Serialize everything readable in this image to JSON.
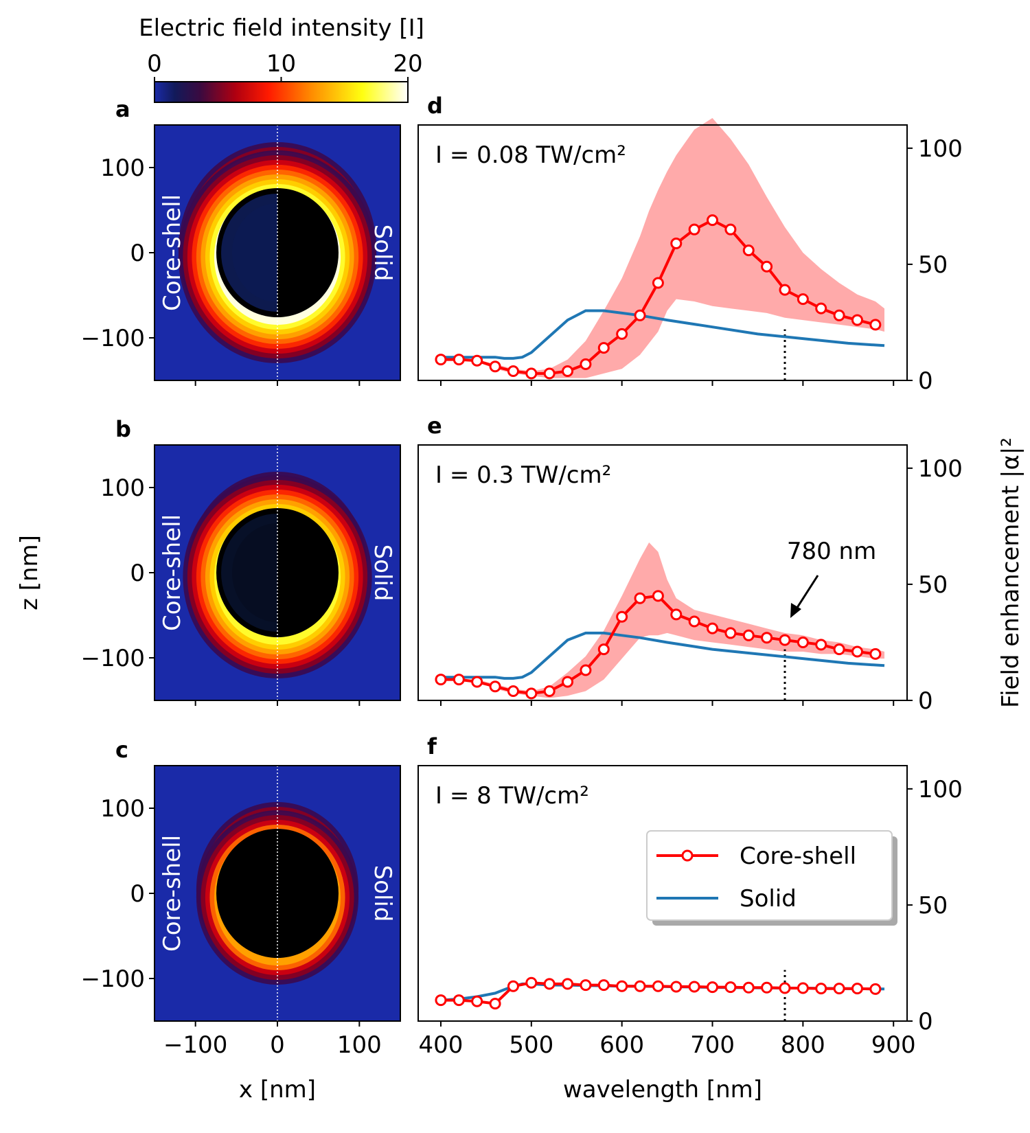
{
  "colors": {
    "core_shell": "#ff0000",
    "solid": "#1f77b4",
    "band": "#ffaaaa",
    "field_bg": "#1a2aa8"
  },
  "colorbar": {
    "title": "Electric field intensity [I]",
    "ticks": [
      "0",
      "10",
      "20"
    ],
    "range": [
      0,
      20
    ]
  },
  "field_maps": {
    "xlabel": "x [nm]",
    "ylabel": "z [nm]",
    "xticks": [
      "−100",
      "0",
      "100"
    ],
    "yticks": [
      "100",
      "0",
      "−100"
    ],
    "xlim": [
      -150,
      150
    ],
    "ylim": [
      -150,
      150
    ],
    "left_label": "Core-shell",
    "right_label": "Solid",
    "panels": [
      {
        "letter": "a",
        "rim_top": 20,
        "rim_bottom": 20
      },
      {
        "letter": "b",
        "rim_top": 16,
        "rim_bottom": 17
      },
      {
        "letter": "c",
        "rim_top": 12,
        "rim_bottom": 12
      }
    ]
  },
  "chart_data": [
    {
      "type": "line",
      "panel": "d",
      "annotation": "I = 0.08 TW/cm²",
      "x": [
        400,
        420,
        440,
        460,
        480,
        500,
        520,
        540,
        560,
        580,
        600,
        620,
        640,
        660,
        680,
        700,
        720,
        740,
        760,
        780,
        800,
        820,
        840,
        860,
        880
      ],
      "series": [
        {
          "name": "Core-shell",
          "values": [
            9,
            9,
            8.5,
            6,
            4,
            3,
            3,
            4,
            7,
            14,
            20,
            28,
            42,
            59,
            65,
            69,
            65,
            56,
            49,
            39,
            35,
            31,
            28,
            26,
            24
          ]
        },
        {
          "name": "Solid",
          "x": [
            400,
            420,
            440,
            460,
            470,
            480,
            490,
            500,
            520,
            540,
            560,
            580,
            600,
            620,
            650,
            700,
            750,
            800,
            850,
            890
          ],
          "values": [
            10,
            10,
            10,
            10,
            9.5,
            9.5,
            10,
            12,
            19,
            26,
            30,
            30,
            29,
            28,
            26,
            23,
            20,
            18,
            16,
            15
          ]
        },
        {
          "name": "band",
          "x": [
            400,
            420,
            440,
            460,
            480,
            500,
            520,
            540,
            560,
            580,
            600,
            620,
            630,
            640,
            650,
            660,
            680,
            700,
            720,
            740,
            760,
            780,
            800,
            820,
            840,
            860,
            880,
            890
          ],
          "upper": [
            9,
            9,
            9,
            7,
            5,
            4,
            5,
            9,
            17,
            30,
            44,
            62,
            73,
            82,
            90,
            97,
            108,
            113,
            104,
            93,
            79,
            66,
            55,
            48,
            42,
            37,
            34,
            31
          ],
          "lower": [
            9,
            9,
            8,
            5,
            3,
            2,
            1,
            1,
            1,
            3,
            5,
            11,
            16,
            21,
            30,
            35,
            34,
            32,
            31,
            30,
            29,
            27,
            26,
            25,
            24,
            23,
            22,
            21
          ]
        }
      ],
      "vline_x": 780,
      "xlim": [
        375,
        915
      ],
      "ylim": [
        0,
        110
      ],
      "xticks": [
        400,
        500,
        600,
        700,
        800,
        900
      ],
      "yticks": [
        0,
        50,
        100
      ]
    },
    {
      "type": "line",
      "panel": "e",
      "annotation": "I = 0.3 TW/cm²",
      "arrow_label": "780 nm",
      "x": [
        400,
        420,
        440,
        460,
        480,
        500,
        520,
        540,
        560,
        580,
        600,
        620,
        640,
        660,
        680,
        700,
        720,
        740,
        760,
        780,
        800,
        820,
        840,
        860,
        880
      ],
      "series": [
        {
          "name": "Core-shell",
          "values": [
            9,
            9,
            8,
            6,
            4,
            3,
            4,
            8,
            13,
            22,
            36,
            44,
            45,
            37,
            34,
            31,
            29,
            28,
            27,
            26,
            25,
            24,
            22,
            21,
            20
          ]
        },
        {
          "name": "Solid",
          "x": [
            400,
            420,
            440,
            460,
            470,
            480,
            490,
            500,
            520,
            540,
            560,
            580,
            600,
            620,
            650,
            700,
            750,
            800,
            850,
            890
          ],
          "values": [
            10,
            10,
            10,
            10,
            9.5,
            9.5,
            10,
            12,
            19,
            26,
            29,
            29,
            28,
            27,
            25,
            22,
            20,
            18,
            16,
            15
          ]
        },
        {
          "name": "band",
          "x": [
            400,
            420,
            440,
            460,
            480,
            500,
            520,
            540,
            560,
            580,
            600,
            620,
            630,
            640,
            650,
            660,
            680,
            700,
            720,
            740,
            760,
            780,
            800,
            820,
            840,
            860,
            880,
            890
          ],
          "upper": [
            9,
            9,
            9,
            7,
            5,
            4,
            6,
            12,
            19,
            30,
            45,
            61,
            68,
            64,
            52,
            44,
            39,
            37,
            35,
            33,
            31,
            29,
            28,
            26,
            25,
            23,
            22,
            21
          ],
          "lower": [
            9,
            9,
            8,
            5,
            3,
            2,
            1,
            2,
            4,
            9,
            18,
            27,
            28,
            28,
            29,
            28,
            26,
            25,
            24,
            23,
            22,
            21,
            21,
            20,
            20,
            19,
            18,
            18
          ]
        }
      ],
      "vline_x": 780,
      "xlim": [
        375,
        915
      ],
      "ylim": [
        0,
        110
      ],
      "xticks": [
        400,
        500,
        600,
        700,
        800,
        900
      ],
      "yticks": [
        0,
        50,
        100
      ]
    },
    {
      "type": "line",
      "panel": "f",
      "annotation": "I = 8 TW/cm²",
      "x": [
        400,
        420,
        440,
        460,
        480,
        500,
        520,
        540,
        560,
        580,
        600,
        620,
        640,
        660,
        680,
        700,
        720,
        740,
        760,
        780,
        800,
        820,
        840,
        860,
        880
      ],
      "series": [
        {
          "name": "Core-shell",
          "values": [
            9,
            9,
            8.5,
            7.5,
            15,
            16.5,
            16,
            16,
            15.5,
            15.5,
            15,
            15,
            15,
            14.8,
            14.8,
            14.6,
            14.6,
            14.4,
            14.4,
            14.2,
            14.2,
            14,
            14,
            14,
            13.8
          ]
        },
        {
          "name": "Solid",
          "x": [
            400,
            420,
            440,
            460,
            470,
            480,
            490,
            500,
            520,
            540,
            560,
            580,
            600,
            620,
            650,
            700,
            750,
            800,
            850,
            890
          ],
          "values": [
            9,
            9.5,
            10.5,
            12,
            13.5,
            15,
            16,
            16,
            15.5,
            15.5,
            15.3,
            15.2,
            15,
            15,
            14.8,
            14.5,
            14.3,
            14.2,
            14,
            13.8
          ]
        },
        {
          "name": "band",
          "x": [
            400,
            890
          ],
          "upper": [
            9,
            9
          ],
          "lower": [
            9,
            9
          ]
        }
      ],
      "vline_x": 780,
      "xlim": [
        375,
        915
      ],
      "ylim": [
        0,
        110
      ],
      "xticks": [
        400,
        500,
        600,
        700,
        800,
        900
      ],
      "yticks": [
        0,
        50,
        100
      ],
      "legend": [
        "Core-shell",
        "Solid"
      ],
      "legend_loc": "center-right"
    }
  ],
  "spectra_axes": {
    "xlabel": "wavelength [nm]",
    "ylabel": "Field enhancement |α|²"
  }
}
